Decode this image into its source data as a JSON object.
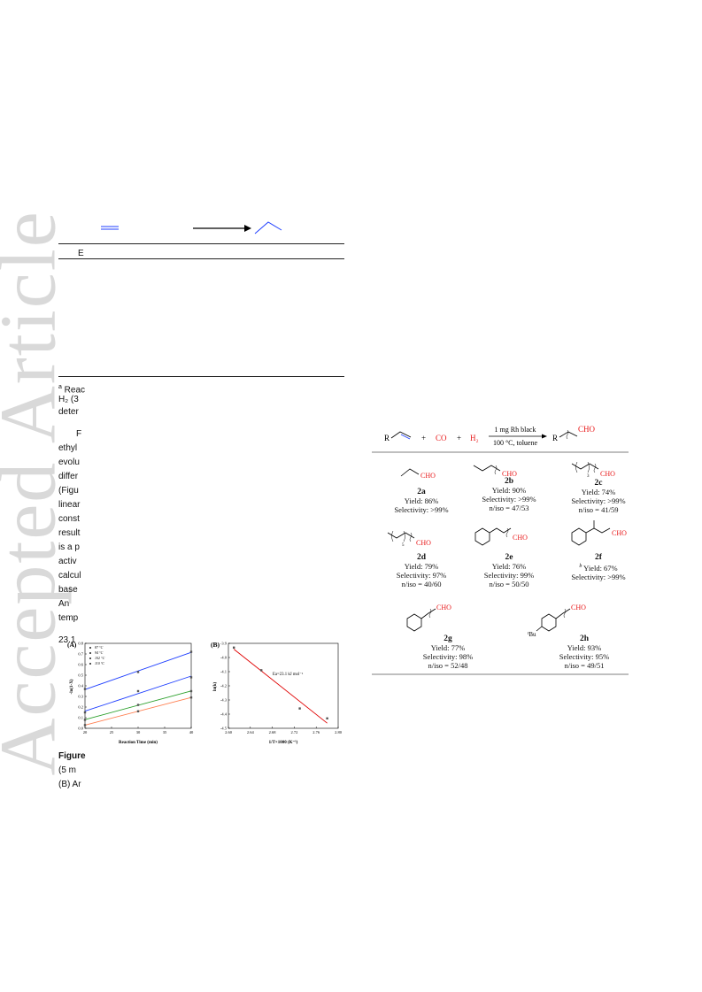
{
  "watermark": "Accepted Article",
  "left_column": {
    "table_header_cell": "E",
    "footnote_lines": [
      {
        "sup": "a",
        "text": " Reac"
      },
      {
        "sup": "",
        "text": "H₂ (3"
      },
      {
        "sup": "",
        "text": "deter"
      }
    ],
    "body_lines": [
      "F",
      "ethyl",
      "evolu",
      "differ",
      "(Figu",
      "linear",
      "const",
      "result",
      "is a p",
      "activ",
      "calcul",
      "base",
      "An",
      "temp",
      "",
      "23.1"
    ],
    "figure_caption_lines": [
      "Figure",
      "(5 m",
      "(B) Ar"
    ]
  },
  "figure_a": {
    "panel_label": "(A)",
    "xlabel": "Reaction Time (min)",
    "ylabel": "-ln(1-X)",
    "xticks": [
      "20",
      "25",
      "30",
      "35",
      "40"
    ],
    "yticks": [
      "0.0",
      "0.1",
      "0.2",
      "0.3",
      "0.4",
      "0.5",
      "0.6",
      "0.7",
      "0.8"
    ],
    "legend": [
      "87 °C",
      "94 °C",
      "102 °C",
      "110 °C"
    ]
  },
  "figure_b": {
    "panel_label": "(B)",
    "xlabel": "1/T×1000 (K⁻¹)",
    "ylabel": "ln(k)",
    "xticks": [
      "2.60",
      "2.64",
      "2.68",
      "2.72",
      "2.76",
      "2.80"
    ],
    "yticks": [
      "-3.9",
      "-4.0",
      "-4.1",
      "-4.2",
      "-4.3",
      "-4.4",
      "-4.5"
    ],
    "annotation": "Ea=23.1 kJ mol⁻¹"
  },
  "chart_data": [
    {
      "type": "scatter",
      "title": "",
      "xlabel": "Reaction Time (min)",
      "ylabel": "-ln(1-X)",
      "xlim": [
        20,
        40
      ],
      "ylim": [
        0,
        0.8
      ],
      "series": [
        {
          "name": "87 °C",
          "color": "#ff7f50",
          "x": [
            20,
            30,
            40
          ],
          "y": [
            0.03,
            0.16,
            0.29
          ]
        },
        {
          "name": "94 °C",
          "color": "#2ca02c",
          "x": [
            20,
            30,
            40
          ],
          "y": [
            0.08,
            0.22,
            0.35
          ]
        },
        {
          "name": "102 °C",
          "color": "#1f3fff",
          "x": [
            20,
            30,
            40
          ],
          "y": [
            0.15,
            0.35,
            0.48
          ]
        },
        {
          "name": "110 °C",
          "color": "#1f3fff",
          "x": [
            20,
            30,
            40
          ],
          "y": [
            0.37,
            0.53,
            0.72
          ]
        }
      ]
    },
    {
      "type": "scatter",
      "title": "",
      "xlabel": "1/T×1000 (K⁻¹)",
      "ylabel": "ln(k)",
      "xlim": [
        2.6,
        2.8
      ],
      "ylim": [
        -4.5,
        -3.9
      ],
      "series": [
        {
          "name": "",
          "color": "#e00000",
          "x": [
            2.61,
            2.66,
            2.73,
            2.78
          ],
          "y": [
            -3.93,
            -4.09,
            -4.36,
            -4.43
          ]
        }
      ],
      "annotations": [
        "Ea=23.1 kJ mol⁻¹"
      ]
    }
  ],
  "scheme": {
    "reactant_r": "R",
    "plus1": "+",
    "co": "CO",
    "plus2": "+",
    "h2": "H₂",
    "arrow_top": "1 mg Rh black",
    "arrow_bottom": "100 °C, toluene",
    "product_r": "R",
    "product_cho": "CHO",
    "compounds": [
      {
        "id": "2a",
        "lines": [
          "Yield: 86%",
          "Selectivity: >99%"
        ]
      },
      {
        "id": "2b",
        "lines": [
          "Yield: 90%",
          "Selectivity: >99%",
          "n/iso = 47/53"
        ]
      },
      {
        "id": "2c",
        "lines": [
          "Yield: 74%",
          "Selectivity: >99%",
          "n/iso = 41/59"
        ]
      },
      {
        "id": "2d",
        "lines": [
          "Yield: 79%",
          "Selectivity: 97%",
          "n/iso = 40/60"
        ]
      },
      {
        "id": "2e",
        "lines": [
          "Yield: 76%",
          "Selectivity: 99%",
          "n/iso = 50/50"
        ]
      },
      {
        "id": "2f",
        "sup": "b",
        "lines": [
          "Yield: 67%",
          "Selectivity: >99%"
        ]
      },
      {
        "id": "2g",
        "lines": [
          "Yield: 77%",
          "Selectivity: 98%",
          "n/iso = 52/48"
        ]
      },
      {
        "id": "2h",
        "lines": [
          "Yield: 93%",
          "Selectivity: 95%",
          "n/iso = 49/51"
        ]
      }
    ],
    "cho": "CHO",
    "sub3": "3",
    "sub5": "5",
    "tbu_prefix": "t",
    "tbu": "Bu"
  },
  "colors": {
    "cho_red": "#e8191a",
    "blue": "#1f3fff",
    "watermark": "#d9d9d9"
  }
}
